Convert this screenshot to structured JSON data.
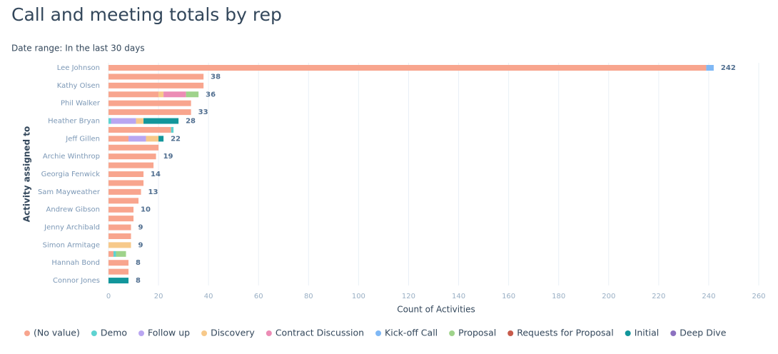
{
  "chart_data": {
    "type": "stacked-bar-horizontal",
    "title": "Call and meeting totals by rep",
    "subtitle": "Date range: In the last 30 days",
    "y_label": "Activity assigned to",
    "x_label": "Count of Activities",
    "categories": [
      "Lee Johnson",
      null,
      "Kathy Olsen",
      null,
      "Phil Walker",
      null,
      "Heather Bryan",
      null,
      "Jeff Gillen",
      null,
      "Archie Winthrop",
      null,
      "Georgia Fenwick",
      null,
      "Sam Mayweather",
      null,
      "Andrew Gibson",
      null,
      "Jenny Archibald",
      null,
      "Simon Armitage",
      null,
      "Hannah Bond",
      null,
      "Connor Jones"
    ],
    "series": [
      {
        "name": "(No value)",
        "color": "#f8a58e",
        "values": [
          239,
          38,
          38,
          20,
          33,
          33,
          null,
          25,
          8,
          20,
          19,
          18,
          14,
          14,
          13,
          12,
          10,
          10,
          9,
          9,
          null,
          2,
          8,
          8,
          null
        ]
      },
      {
        "name": "Demo",
        "color": "#5ed3d1",
        "values": [
          null,
          null,
          null,
          null,
          null,
          null,
          1,
          1,
          null,
          null,
          null,
          null,
          null,
          null,
          null,
          null,
          null,
          null,
          null,
          null,
          null,
          1,
          null,
          null,
          null
        ]
      },
      {
        "name": "Follow up",
        "color": "#b9a6f1",
        "values": [
          null,
          null,
          null,
          null,
          null,
          null,
          10,
          null,
          7,
          null,
          null,
          null,
          null,
          null,
          null,
          null,
          null,
          null,
          null,
          null,
          null,
          null,
          null,
          null,
          null
        ]
      },
      {
        "name": "Discovery",
        "color": "#f7c98a",
        "values": [
          null,
          null,
          null,
          2,
          null,
          null,
          3,
          null,
          5,
          null,
          null,
          null,
          null,
          null,
          null,
          null,
          null,
          null,
          null,
          null,
          9,
          null,
          null,
          null,
          null
        ]
      },
      {
        "name": "Contract Discussion",
        "color": "#ec8cb5",
        "values": [
          null,
          null,
          null,
          9,
          null,
          null,
          null,
          null,
          null,
          null,
          null,
          null,
          null,
          null,
          null,
          null,
          null,
          null,
          null,
          null,
          null,
          null,
          null,
          null,
          null
        ]
      },
      {
        "name": "Kick-off Call",
        "color": "#7fb8f5",
        "values": [
          3,
          null,
          null,
          null,
          null,
          null,
          null,
          null,
          null,
          null,
          null,
          null,
          null,
          null,
          null,
          null,
          null,
          null,
          null,
          null,
          null,
          null,
          null,
          null,
          null
        ]
      },
      {
        "name": "Proposal",
        "color": "#9fd38b",
        "values": [
          null,
          null,
          null,
          5,
          null,
          null,
          null,
          null,
          null,
          null,
          null,
          null,
          null,
          null,
          null,
          null,
          null,
          null,
          null,
          null,
          null,
          4,
          null,
          null,
          null
        ]
      },
      {
        "name": "Requests for Proposal",
        "color": "#c75b4b",
        "values": [
          null,
          null,
          null,
          null,
          null,
          null,
          null,
          null,
          null,
          null,
          null,
          null,
          null,
          null,
          null,
          null,
          null,
          null,
          null,
          null,
          null,
          null,
          null,
          null,
          null
        ]
      },
      {
        "name": "Initial",
        "color": "#12969b",
        "values": [
          null,
          null,
          null,
          null,
          null,
          null,
          14,
          null,
          2,
          null,
          null,
          null,
          null,
          null,
          null,
          null,
          null,
          null,
          null,
          null,
          null,
          null,
          null,
          null,
          8
        ]
      },
      {
        "name": "Deep Dive",
        "color": "#8c71c0",
        "values": [
          null,
          null,
          null,
          null,
          null,
          null,
          null,
          null,
          null,
          null,
          null,
          null,
          null,
          null,
          null,
          null,
          null,
          null,
          null,
          null,
          null,
          null,
          null,
          null,
          null
        ]
      }
    ],
    "totals": [
      242,
      38,
      null,
      36,
      null,
      33,
      28,
      null,
      22,
      null,
      19,
      null,
      14,
      null,
      13,
      null,
      10,
      null,
      9,
      null,
      9,
      null,
      8,
      null,
      8
    ],
    "xlim": [
      0,
      260
    ],
    "xticks": [
      0,
      20,
      40,
      60,
      80,
      100,
      120,
      140,
      160,
      180,
      200,
      220,
      240,
      260
    ],
    "grid": true
  }
}
